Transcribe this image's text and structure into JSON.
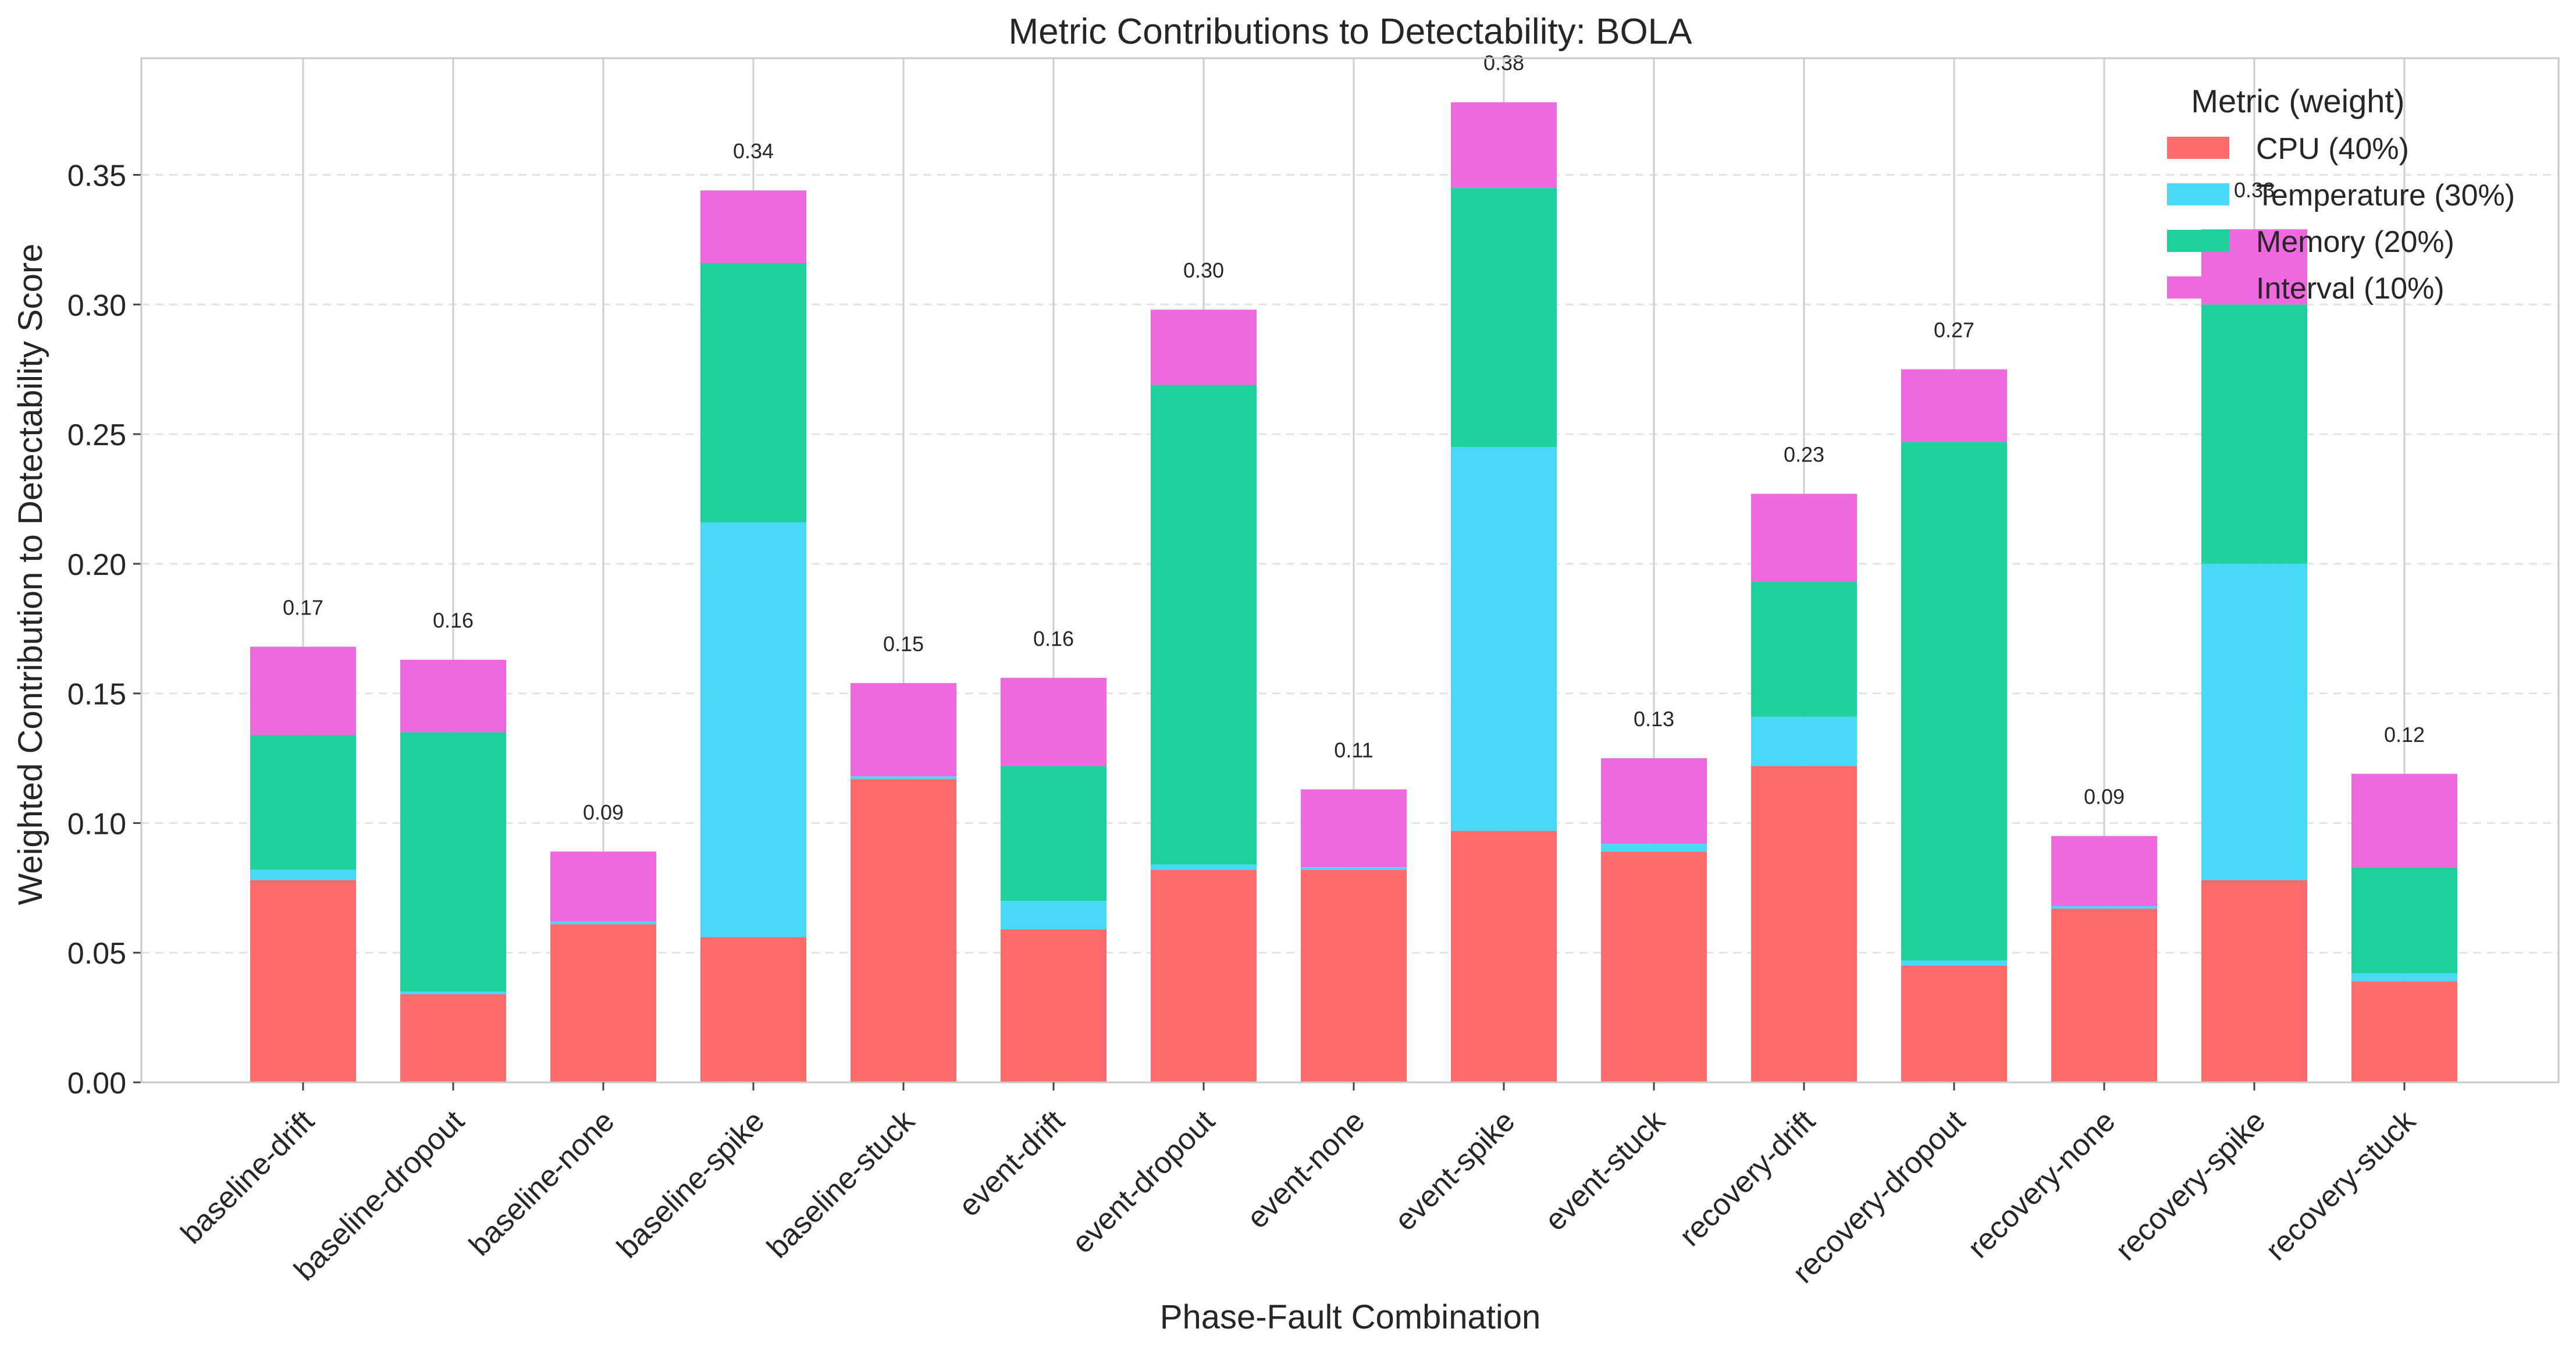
{
  "chart_data": {
    "type": "bar",
    "stacked": true,
    "title": "Metric Contributions to Detectability: BOLA",
    "xlabel": "Phase-Fault Combination",
    "ylabel": "Weighted Contribution to Detectability Score",
    "ylim": [
      0,
      0.395
    ],
    "yticks": [
      0.0,
      0.05,
      0.1,
      0.15,
      0.2,
      0.25,
      0.3,
      0.35
    ],
    "ytick_labels": [
      "0.00",
      "0.05",
      "0.10",
      "0.15",
      "0.20",
      "0.25",
      "0.30",
      "0.35"
    ],
    "grid": true,
    "legend": {
      "title": "Metric (weight)",
      "position": "top-right"
    },
    "categories": [
      "baseline-drift",
      "baseline-dropout",
      "baseline-none",
      "baseline-spike",
      "baseline-stuck",
      "event-drift",
      "event-dropout",
      "event-none",
      "event-spike",
      "event-stuck",
      "recovery-drift",
      "recovery-dropout",
      "recovery-none",
      "recovery-spike",
      "recovery-stuck"
    ],
    "series": [
      {
        "name": "CPU (40%)",
        "color": "#ff6b6b",
        "values": [
          0.078,
          0.034,
          0.061,
          0.056,
          0.117,
          0.059,
          0.082,
          0.082,
          0.097,
          0.089,
          0.122,
          0.045,
          0.067,
          0.078,
          0.039
        ]
      },
      {
        "name": "Temperature (30%)",
        "color": "#48d8f8",
        "values": [
          0.004,
          0.001,
          0.001,
          0.16,
          0.001,
          0.011,
          0.002,
          0.001,
          0.148,
          0.003,
          0.019,
          0.002,
          0.001,
          0.122,
          0.003
        ]
      },
      {
        "name": "Memory (20%)",
        "color": "#1ed09c",
        "values": [
          0.052,
          0.1,
          0.0,
          0.1,
          0.0,
          0.052,
          0.185,
          0.0,
          0.1,
          0.0,
          0.052,
          0.2,
          0.0,
          0.1,
          0.041
        ]
      },
      {
        "name": "Interval (10%)",
        "color": "#f068e0",
        "values": [
          0.034,
          0.028,
          0.027,
          0.028,
          0.036,
          0.034,
          0.029,
          0.03,
          0.033,
          0.033,
          0.034,
          0.028,
          0.027,
          0.029,
          0.036
        ]
      }
    ],
    "totals": [
      0.168,
      0.163,
      0.089,
      0.344,
      0.154,
      0.156,
      0.298,
      0.113,
      0.378,
      0.125,
      0.227,
      0.275,
      0.095,
      0.329,
      0.119
    ],
    "total_labels": [
      "0.17",
      "0.16",
      "0.09",
      "0.34",
      "0.15",
      "0.16",
      "0.30",
      "0.11",
      "0.38",
      "0.13",
      "0.23",
      "0.27",
      "0.09",
      "0.33",
      "0.12"
    ]
  }
}
